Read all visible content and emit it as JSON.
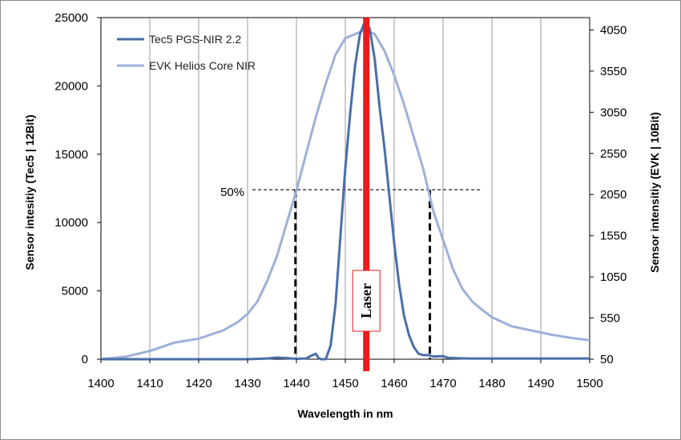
{
  "chart_data": {
    "type": "line",
    "xlabel": "Wavelength in nm",
    "ylabel_left": "Sensor intesitiy (Tec5 | 12Bit)",
    "ylabel_right": "Sensor intensitiy (EVK | 10Bit)",
    "xlim": [
      1400,
      1500
    ],
    "x_ticks": [
      "1400",
      "1410",
      "1420",
      "1430",
      "1440",
      "1450",
      "1460",
      "1470",
      "1480",
      "1490",
      "1500"
    ],
    "ylim_left": [
      0,
      25000
    ],
    "y_ticks_left": [
      "0",
      "5000",
      "10000",
      "15000",
      "20000",
      "25000"
    ],
    "ylim_right": [
      50,
      4200
    ],
    "y_ticks_right": [
      "50",
      "550",
      "1050",
      "1550",
      "2050",
      "2550",
      "3050",
      "3550",
      "4050"
    ],
    "legend": [
      "Tec5 PGS-NIR 2.2",
      "EVK Helios Core NIR"
    ],
    "series": [
      {
        "name": "Tec5 PGS-NIR 2.2",
        "axis": "left",
        "color": "#4a6ea8",
        "points": [
          [
            1400,
            0
          ],
          [
            1430,
            0
          ],
          [
            1434,
            50
          ],
          [
            1436,
            120
          ],
          [
            1438,
            80
          ],
          [
            1440,
            30
          ],
          [
            1442,
            50
          ],
          [
            1443,
            250
          ],
          [
            1444,
            400
          ],
          [
            1444.5,
            100
          ],
          [
            1445,
            0
          ],
          [
            1446,
            0
          ],
          [
            1447,
            1000
          ],
          [
            1448,
            4000
          ],
          [
            1449,
            9000
          ],
          [
            1450,
            14000
          ],
          [
            1451,
            18000
          ],
          [
            1452,
            21500
          ],
          [
            1453,
            23800
          ],
          [
            1454,
            24700
          ],
          [
            1455,
            24200
          ],
          [
            1456,
            22000
          ],
          [
            1457,
            18500
          ],
          [
            1458,
            15500
          ],
          [
            1459,
            12000
          ],
          [
            1460,
            8500
          ],
          [
            1461,
            5500
          ],
          [
            1462,
            3200
          ],
          [
            1463,
            1800
          ],
          [
            1464,
            900
          ],
          [
            1465,
            400
          ],
          [
            1466,
            300
          ],
          [
            1467,
            300
          ],
          [
            1468,
            200
          ],
          [
            1470,
            230
          ],
          [
            1471,
            100
          ],
          [
            1475,
            50
          ],
          [
            1480,
            50
          ],
          [
            1500,
            50
          ]
        ]
      },
      {
        "name": "EVK Helios Core NIR",
        "axis": "right",
        "color": "#9db0d8",
        "points": [
          [
            1400,
            50
          ],
          [
            1405,
            80
          ],
          [
            1410,
            150
          ],
          [
            1415,
            250
          ],
          [
            1420,
            300
          ],
          [
            1425,
            400
          ],
          [
            1428,
            500
          ],
          [
            1430,
            600
          ],
          [
            1432,
            750
          ],
          [
            1434,
            1000
          ],
          [
            1436,
            1300
          ],
          [
            1438,
            1700
          ],
          [
            1439,
            1900
          ],
          [
            1440,
            2100
          ],
          [
            1442,
            2550
          ],
          [
            1444,
            3000
          ],
          [
            1446,
            3400
          ],
          [
            1448,
            3750
          ],
          [
            1450,
            3950
          ],
          [
            1452,
            4000
          ],
          [
            1454,
            4050
          ],
          [
            1456,
            4000
          ],
          [
            1458,
            3800
          ],
          [
            1460,
            3500
          ],
          [
            1462,
            3150
          ],
          [
            1464,
            2750
          ],
          [
            1466,
            2350
          ],
          [
            1467,
            2100
          ],
          [
            1468,
            1850
          ],
          [
            1470,
            1500
          ],
          [
            1472,
            1150
          ],
          [
            1474,
            900
          ],
          [
            1476,
            750
          ],
          [
            1478,
            650
          ],
          [
            1480,
            560
          ],
          [
            1484,
            450
          ],
          [
            1488,
            400
          ],
          [
            1492,
            350
          ],
          [
            1496,
            310
          ],
          [
            1500,
            280
          ]
        ]
      }
    ],
    "laser": {
      "x": 1454.3,
      "label": "Laser",
      "color": "#e81c1c"
    },
    "half_max": {
      "y_left": 12400,
      "x_start": 1431,
      "x_end": 1478,
      "label": "50%",
      "fwhm_x": [
        1439.8,
        1467.3
      ]
    }
  }
}
